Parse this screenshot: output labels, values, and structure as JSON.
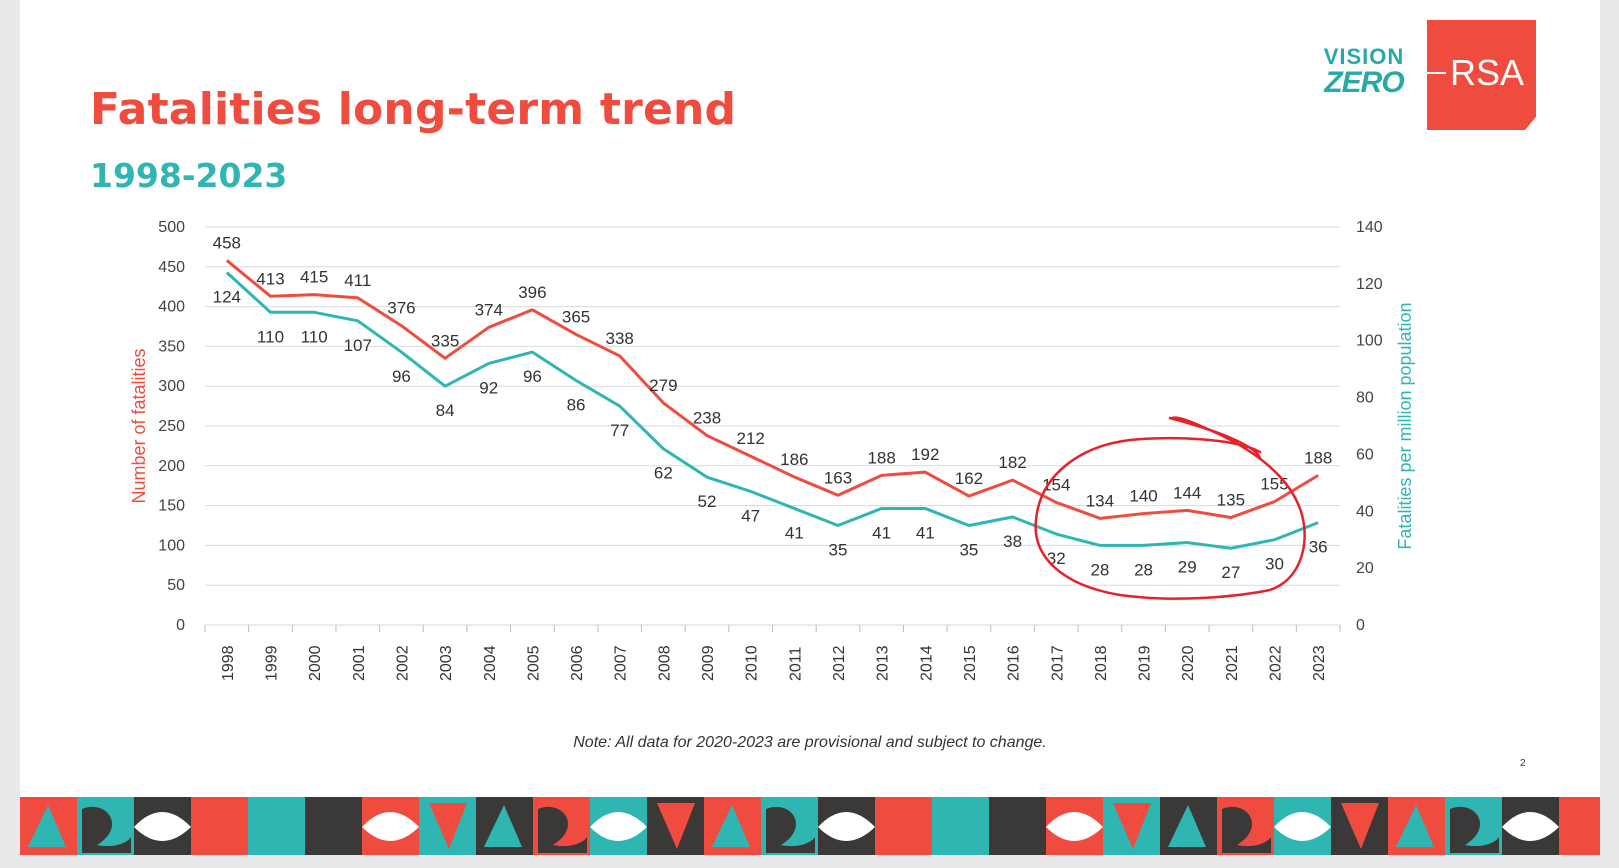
{
  "slide": {
    "title": "Fatalities long-term trend",
    "subtitle": "1998-2023",
    "note": "Note: All data for 2020-2023 are provisional and subject to change.",
    "page_number": "2"
  },
  "logos": {
    "vision": "VISION",
    "zero": "ZERO",
    "rsa": "RSA"
  },
  "colors": {
    "fatalities": "#ef4b3f",
    "per_million": "#2fb5b2",
    "annotation": "#e8202a"
  },
  "chart_data": {
    "type": "line",
    "x": [
      "1998",
      "1999",
      "2000",
      "2001",
      "2002",
      "2003",
      "2004",
      "2005",
      "2006",
      "2007",
      "2008",
      "2009",
      "2010",
      "2011",
      "2012",
      "2013",
      "2014",
      "2015",
      "2016",
      "2017",
      "2018",
      "2019",
      "2020",
      "2021",
      "2022",
      "2023"
    ],
    "ylabel": "Number of fatalities",
    "ylabel_right": "Fatalities per million population",
    "ylim": [
      0,
      500
    ],
    "yticks": [
      "0",
      "50",
      "100",
      "150",
      "200",
      "250",
      "300",
      "350",
      "400",
      "450",
      "500"
    ],
    "ylim_right": [
      0,
      140
    ],
    "yticks_right": [
      "0",
      "20",
      "40",
      "60",
      "80",
      "100",
      "120",
      "140"
    ],
    "grid": true,
    "series": [
      {
        "axis": "left",
        "color": "#ef4b3f",
        "values": [
          458,
          413,
          415,
          411,
          376,
          335,
          374,
          396,
          365,
          338,
          279,
          238,
          212,
          186,
          163,
          188,
          192,
          162,
          182,
          154,
          134,
          140,
          144,
          135,
          155,
          188
        ]
      },
      {
        "axis": "right",
        "color": "#2fb5b2",
        "values": [
          124,
          110,
          110,
          107,
          96,
          84,
          92,
          96,
          86,
          77,
          62,
          52,
          47,
          41,
          35,
          41,
          41,
          35,
          38,
          32,
          28,
          28,
          29,
          27,
          30,
          36
        ]
      }
    ],
    "annotations": [
      "hand-drawn red circle around 2017-2022"
    ]
  }
}
